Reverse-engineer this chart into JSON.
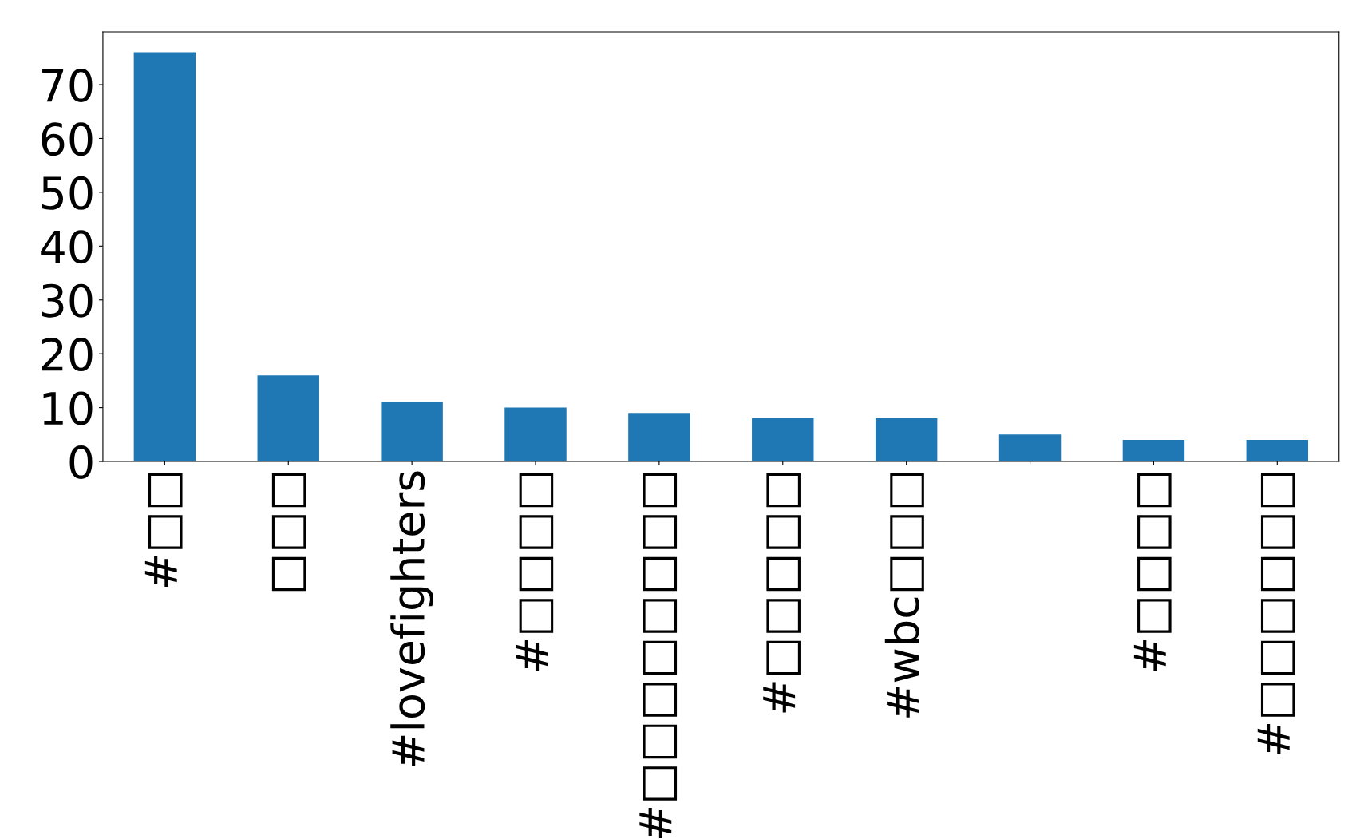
{
  "chart_data": {
    "type": "bar",
    "categories": [
      "#□□",
      "□□□",
      "#lovefighters",
      "#□□□□",
      "#□□□□□□□□",
      "#□□□□□",
      "#wbc□□□",
      null,
      "#□□□□",
      "#□□□□□□"
    ],
    "values": [
      76,
      16,
      11,
      10,
      9,
      8,
      8,
      5,
      4,
      4
    ],
    "color": "#1f77b4",
    "ylim": [
      0,
      79.8
    ],
    "yticks": [
      0,
      10,
      20,
      30,
      40,
      50,
      60,
      70
    ],
    "grid": false,
    "legend": false
  }
}
